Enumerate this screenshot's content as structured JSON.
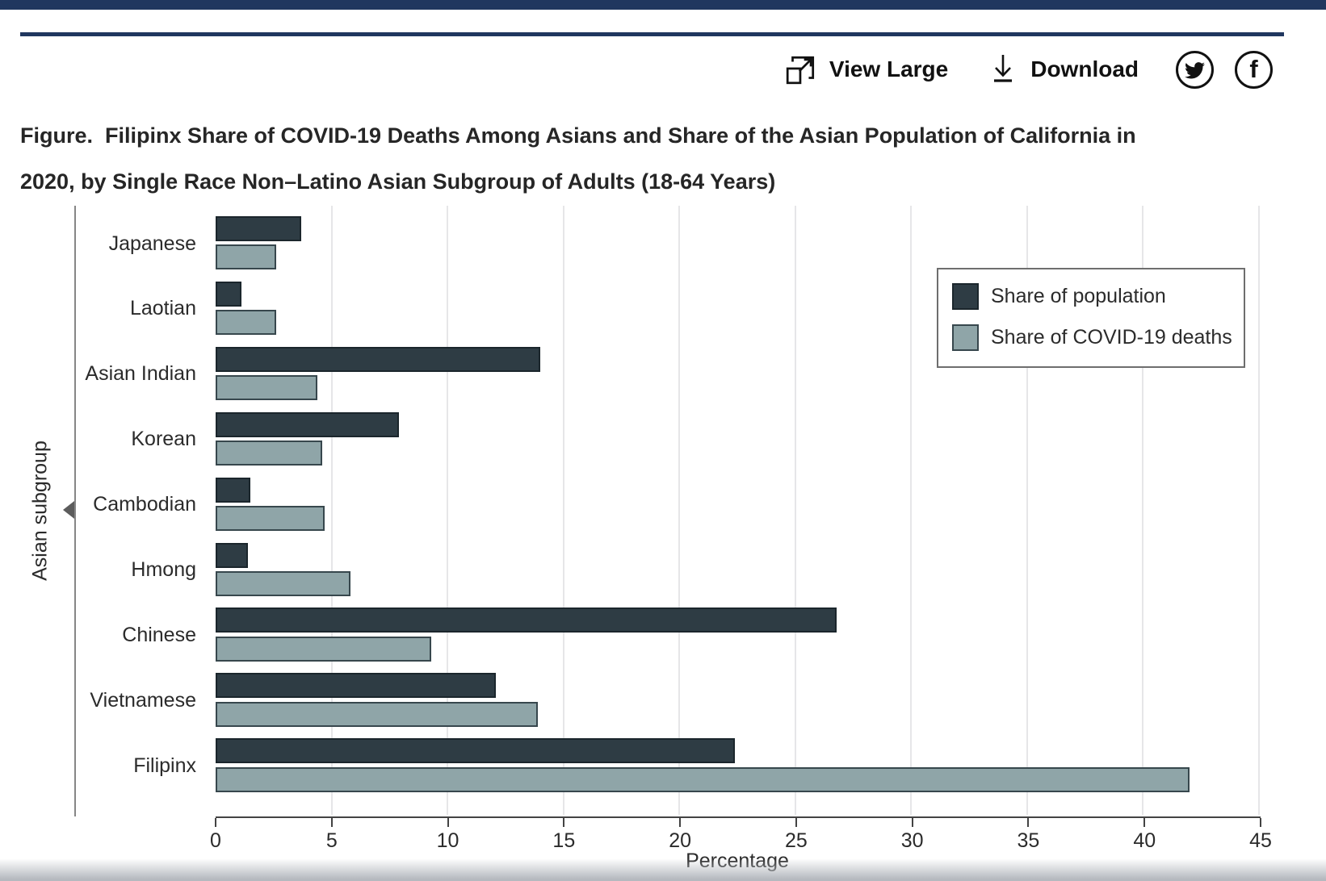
{
  "page": {
    "accent_navy": "#20375f"
  },
  "toolbar": {
    "view_large_label": "View Large",
    "download_label": "Download",
    "icons": {
      "view_large": "expand-icon",
      "download": "download-icon",
      "twitter": "twitter-icon",
      "facebook": "facebook-icon"
    },
    "facebook_glyph": "f"
  },
  "figure": {
    "title_line1": "Figure.  Filipinx Share of COVID-19 Deaths Among Asians and Share of the Asian Population of California in",
    "title_line2": "2020, by Single Race Non–Latino Asian Subgroup of Adults (18-64 Years)"
  },
  "chart_data": {
    "type": "bar",
    "orientation": "horizontal",
    "title": "",
    "xlabel": "Percentage",
    "ylabel": "Asian subgroup",
    "xlim": [
      0,
      45
    ],
    "xticks": [
      0,
      5,
      10,
      15,
      20,
      25,
      30,
      35,
      40,
      45
    ],
    "grid": true,
    "legend_position": "upper right",
    "categories": [
      "Japanese",
      "Laotian",
      "Asian Indian",
      "Korean",
      "Cambodian",
      "Hmong",
      "Chinese",
      "Vietnamese",
      "Filipinx"
    ],
    "series": [
      {
        "name": "Share of population",
        "color": "#2e3c44",
        "border_color": "#1b262c",
        "values": [
          3.7,
          1.1,
          14.0,
          7.9,
          1.5,
          1.4,
          26.8,
          12.1,
          22.4
        ]
      },
      {
        "name": "Share of COVID-19 deaths",
        "color": "#8fa5a8",
        "border_color": "#37474d",
        "values": [
          2.6,
          2.6,
          4.4,
          4.6,
          4.7,
          5.8,
          9.3,
          13.9,
          42.0
        ]
      }
    ]
  }
}
